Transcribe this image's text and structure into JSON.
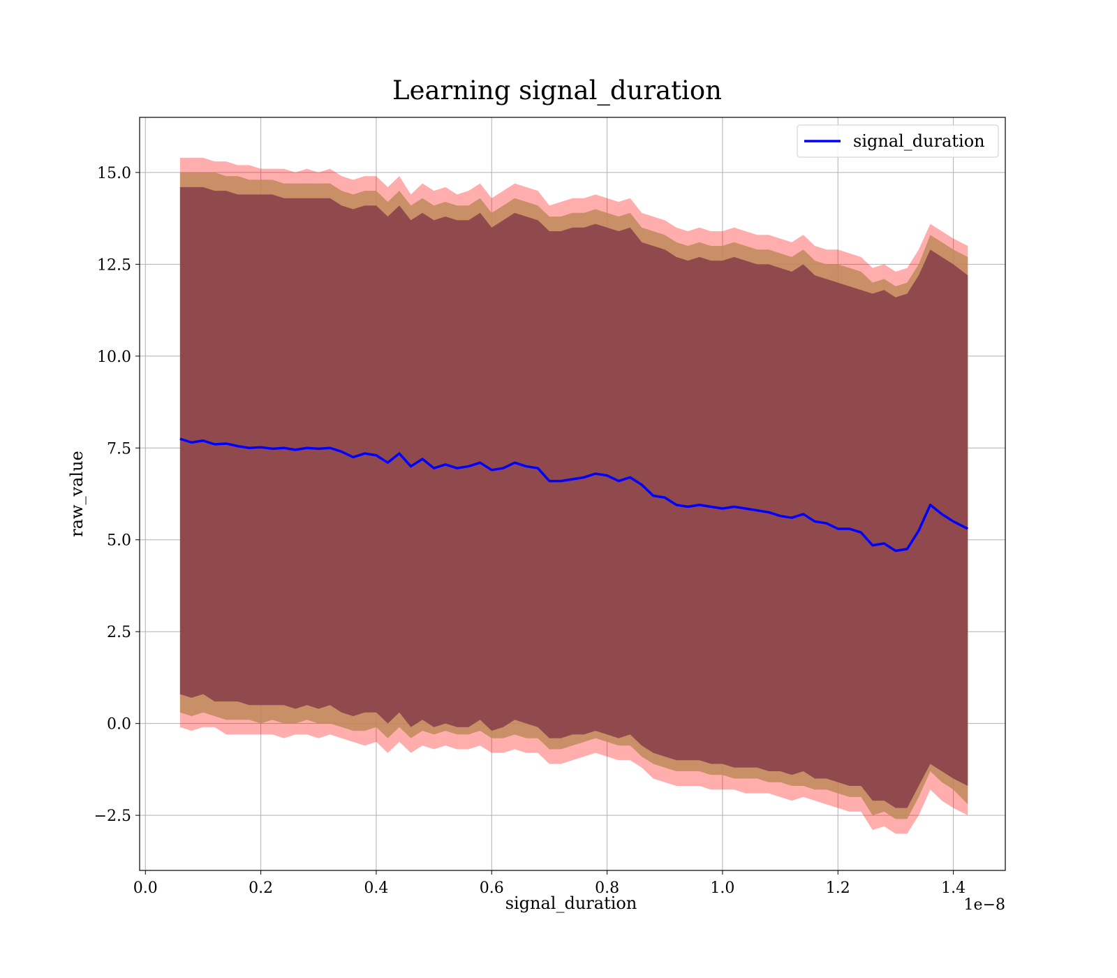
{
  "chart_data": {
    "type": "line",
    "title": "Learning signal_duration",
    "xlabel": "signal_duration",
    "ylabel": "raw_value",
    "x_offset_text": "1e−8",
    "xlim": [
      -0.01,
      1.49
    ],
    "ylim": [
      -4.0,
      16.5
    ],
    "xticks": [
      0.0,
      0.2,
      0.4,
      0.6,
      0.8,
      1.0,
      1.2,
      1.4
    ],
    "xtick_labels": [
      "0.0",
      "0.2",
      "0.4",
      "0.6",
      "0.8",
      "1.0",
      "1.2",
      "1.4"
    ],
    "yticks": [
      -2.5,
      0.0,
      2.5,
      5.0,
      7.5,
      10.0,
      12.5,
      15.0
    ],
    "ytick_labels": [
      "−2.5",
      "0.0",
      "2.5",
      "5.0",
      "7.5",
      "10.0",
      "12.5",
      "15.0"
    ],
    "grid": true,
    "legend": {
      "placement": "upper right",
      "entries": [
        "signal_duration"
      ]
    },
    "colors": {
      "line": "#0000ff",
      "band_outer": "#ff0000",
      "band_middle": "#c08a5a",
      "band_inner": "#7a2f45"
    },
    "x": [
      0.06,
      0.08,
      0.1,
      0.12,
      0.14,
      0.16,
      0.18,
      0.2,
      0.22,
      0.24,
      0.26,
      0.28,
      0.3,
      0.32,
      0.34,
      0.36,
      0.38,
      0.4,
      0.42,
      0.44,
      0.46,
      0.48,
      0.5,
      0.52,
      0.54,
      0.56,
      0.58,
      0.6,
      0.62,
      0.64,
      0.66,
      0.68,
      0.7,
      0.72,
      0.74,
      0.76,
      0.78,
      0.8,
      0.82,
      0.84,
      0.86,
      0.88,
      0.9,
      0.92,
      0.94,
      0.96,
      0.98,
      1.0,
      1.02,
      1.04,
      1.06,
      1.08,
      1.1,
      1.12,
      1.14,
      1.16,
      1.18,
      1.2,
      1.22,
      1.24,
      1.26,
      1.28,
      1.3,
      1.32,
      1.34,
      1.36,
      1.38,
      1.4,
      1.425
    ],
    "series": [
      {
        "name": "signal_duration",
        "values": [
          7.75,
          7.65,
          7.7,
          7.6,
          7.62,
          7.55,
          7.5,
          7.52,
          7.48,
          7.5,
          7.45,
          7.5,
          7.48,
          7.5,
          7.4,
          7.25,
          7.35,
          7.3,
          7.1,
          7.35,
          7.0,
          7.2,
          6.95,
          7.05,
          6.95,
          7.0,
          7.1,
          6.9,
          6.95,
          7.1,
          7.0,
          6.95,
          6.6,
          6.6,
          6.65,
          6.7,
          6.8,
          6.75,
          6.6,
          6.7,
          6.5,
          6.2,
          6.15,
          5.95,
          5.9,
          5.95,
          5.9,
          5.85,
          5.9,
          5.85,
          5.8,
          5.75,
          5.65,
          5.6,
          5.7,
          5.5,
          5.45,
          5.3,
          5.3,
          5.2,
          4.85,
          4.9,
          4.7,
          4.75,
          5.25,
          5.95,
          5.7,
          5.5,
          5.3
        ]
      }
    ],
    "bands": [
      {
        "band": "outer",
        "lower": [
          -0.1,
          -0.2,
          -0.1,
          -0.1,
          -0.3,
          -0.3,
          -0.3,
          -0.3,
          -0.3,
          -0.4,
          -0.3,
          -0.3,
          -0.4,
          -0.3,
          -0.4,
          -0.5,
          -0.6,
          -0.5,
          -0.8,
          -0.5,
          -0.8,
          -0.6,
          -0.7,
          -0.6,
          -0.7,
          -0.7,
          -0.6,
          -0.8,
          -0.8,
          -0.7,
          -0.8,
          -0.8,
          -1.1,
          -1.1,
          -1.0,
          -0.9,
          -0.8,
          -0.9,
          -1.0,
          -1.0,
          -1.2,
          -1.5,
          -1.6,
          -1.7,
          -1.7,
          -1.7,
          -1.8,
          -1.8,
          -1.8,
          -1.9,
          -1.9,
          -1.9,
          -2.0,
          -2.1,
          -2.0,
          -2.1,
          -2.2,
          -2.3,
          -2.4,
          -2.4,
          -2.9,
          -2.8,
          -3.0,
          -3.0,
          -2.5,
          -1.8,
          -2.1,
          -2.3,
          -2.5
        ],
        "upper": [
          15.4,
          15.4,
          15.4,
          15.3,
          15.3,
          15.2,
          15.2,
          15.1,
          15.1,
          15.1,
          15.0,
          15.1,
          15.0,
          15.1,
          14.9,
          14.8,
          14.9,
          14.9,
          14.6,
          14.9,
          14.4,
          14.7,
          14.5,
          14.6,
          14.4,
          14.5,
          14.7,
          14.3,
          14.5,
          14.7,
          14.6,
          14.5,
          14.1,
          14.2,
          14.3,
          14.3,
          14.4,
          14.3,
          14.2,
          14.3,
          13.9,
          13.8,
          13.7,
          13.5,
          13.4,
          13.5,
          13.4,
          13.4,
          13.5,
          13.4,
          13.3,
          13.3,
          13.2,
          13.1,
          13.3,
          13.0,
          12.9,
          12.9,
          12.8,
          12.7,
          12.4,
          12.5,
          12.3,
          12.4,
          12.9,
          13.6,
          13.4,
          13.2,
          13.0
        ]
      },
      {
        "band": "middle",
        "lower": [
          0.3,
          0.2,
          0.3,
          0.2,
          0.1,
          0.1,
          0.1,
          0.0,
          0.1,
          0.0,
          0.0,
          0.1,
          0.0,
          0.0,
          -0.1,
          -0.2,
          -0.2,
          -0.1,
          -0.4,
          -0.1,
          -0.4,
          -0.2,
          -0.3,
          -0.2,
          -0.3,
          -0.3,
          -0.2,
          -0.4,
          -0.4,
          -0.3,
          -0.4,
          -0.4,
          -0.7,
          -0.7,
          -0.6,
          -0.5,
          -0.4,
          -0.5,
          -0.6,
          -0.6,
          -0.9,
          -1.1,
          -1.2,
          -1.3,
          -1.3,
          -1.3,
          -1.4,
          -1.4,
          -1.5,
          -1.5,
          -1.5,
          -1.6,
          -1.6,
          -1.7,
          -1.7,
          -1.8,
          -1.8,
          -1.9,
          -2.0,
          -2.0,
          -2.5,
          -2.4,
          -2.6,
          -2.6,
          -2.0,
          -1.3,
          -1.6,
          -1.8,
          -2.2
        ],
        "upper": [
          15.0,
          15.0,
          15.0,
          15.0,
          14.9,
          14.9,
          14.8,
          14.8,
          14.8,
          14.7,
          14.7,
          14.7,
          14.7,
          14.7,
          14.5,
          14.4,
          14.5,
          14.5,
          14.2,
          14.5,
          14.1,
          14.3,
          14.1,
          14.2,
          14.1,
          14.1,
          14.3,
          13.9,
          14.1,
          14.3,
          14.2,
          14.1,
          13.8,
          13.8,
          13.9,
          13.9,
          14.0,
          13.9,
          13.8,
          13.9,
          13.5,
          13.4,
          13.3,
          13.1,
          13.0,
          13.1,
          13.0,
          13.0,
          13.1,
          13.0,
          12.9,
          12.9,
          12.8,
          12.7,
          12.9,
          12.6,
          12.5,
          12.5,
          12.4,
          12.3,
          12.0,
          12.1,
          11.9,
          12.0,
          12.5,
          13.3,
          13.1,
          12.9,
          12.7
        ]
      },
      {
        "band": "inner",
        "lower": [
          0.8,
          0.7,
          0.8,
          0.6,
          0.6,
          0.6,
          0.5,
          0.5,
          0.5,
          0.5,
          0.4,
          0.5,
          0.4,
          0.5,
          0.3,
          0.2,
          0.3,
          0.3,
          0.0,
          0.3,
          -0.1,
          0.1,
          -0.1,
          0.0,
          -0.1,
          -0.1,
          0.1,
          -0.2,
          -0.1,
          0.1,
          0.0,
          -0.1,
          -0.4,
          -0.4,
          -0.3,
          -0.3,
          -0.2,
          -0.3,
          -0.4,
          -0.3,
          -0.6,
          -0.8,
          -0.9,
          -1.0,
          -1.0,
          -1.0,
          -1.1,
          -1.1,
          -1.2,
          -1.2,
          -1.2,
          -1.3,
          -1.3,
          -1.4,
          -1.3,
          -1.5,
          -1.5,
          -1.6,
          -1.7,
          -1.7,
          -2.1,
          -2.1,
          -2.3,
          -2.3,
          -1.7,
          -1.1,
          -1.3,
          -1.5,
          -1.7
        ],
        "upper": [
          14.6,
          14.6,
          14.6,
          14.5,
          14.5,
          14.4,
          14.4,
          14.4,
          14.4,
          14.3,
          14.3,
          14.3,
          14.3,
          14.3,
          14.1,
          14.0,
          14.1,
          14.1,
          13.8,
          14.1,
          13.7,
          13.9,
          13.7,
          13.8,
          13.7,
          13.7,
          13.9,
          13.5,
          13.7,
          13.9,
          13.8,
          13.7,
          13.4,
          13.4,
          13.5,
          13.5,
          13.6,
          13.5,
          13.4,
          13.5,
          13.1,
          13.0,
          12.9,
          12.7,
          12.6,
          12.7,
          12.6,
          12.6,
          12.7,
          12.6,
          12.5,
          12.5,
          12.4,
          12.3,
          12.5,
          12.2,
          12.1,
          12.0,
          11.9,
          11.8,
          11.7,
          11.8,
          11.6,
          11.7,
          12.2,
          12.9,
          12.7,
          12.5,
          12.2
        ]
      }
    ]
  }
}
